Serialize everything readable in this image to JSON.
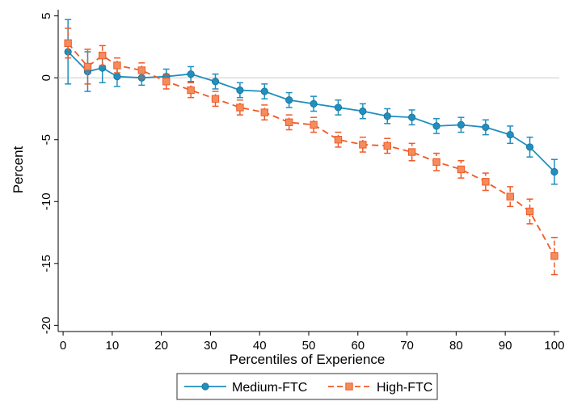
{
  "chart_data": {
    "type": "line",
    "title": "",
    "xlabel": "Percentiles of Experience",
    "ylabel": "Percent",
    "xlim": [
      -1,
      101
    ],
    "ylim": [
      -20.5,
      5.5
    ],
    "xticks": [
      0,
      10,
      20,
      30,
      40,
      50,
      60,
      70,
      80,
      90,
      100
    ],
    "yticks": [
      5,
      0,
      -5,
      -10,
      -15,
      -20
    ],
    "reference_line_y": 0,
    "grid": false,
    "legend_position": "bottom-center",
    "series": [
      {
        "name": "Medium-FTC",
        "color": "#1f8fbf",
        "marker": "circle",
        "line_style": "solid",
        "x": [
          1,
          5,
          8,
          11,
          16,
          21,
          26,
          31,
          36,
          41,
          46,
          51,
          56,
          61,
          66,
          71,
          76,
          81,
          86,
          91,
          95,
          100
        ],
        "y": [
          2.1,
          0.5,
          0.8,
          0.1,
          0.0,
          0.1,
          0.3,
          -0.3,
          -1.0,
          -1.1,
          -1.8,
          -2.1,
          -2.4,
          -2.7,
          -3.1,
          -3.2,
          -3.9,
          -3.8,
          -4.0,
          -4.6,
          -5.6,
          -7.6
        ],
        "ci_low": [
          -0.5,
          -1.1,
          -0.4,
          -0.7,
          -0.6,
          -0.5,
          -0.3,
          -0.9,
          -1.6,
          -1.7,
          -2.4,
          -2.7,
          -3.0,
          -3.3,
          -3.7,
          -3.8,
          -4.5,
          -4.4,
          -4.6,
          -5.3,
          -6.4,
          -8.6
        ],
        "ci_high": [
          4.7,
          2.1,
          2.0,
          0.9,
          0.6,
          0.7,
          0.9,
          0.3,
          -0.4,
          -0.5,
          -1.2,
          -1.5,
          -1.8,
          -2.1,
          -2.5,
          -2.6,
          -3.3,
          -3.2,
          -3.4,
          -3.9,
          -4.8,
          -6.6
        ]
      },
      {
        "name": "High-FTC",
        "color": "#f05a28",
        "marker": "square",
        "line_style": "dashed",
        "x": [
          1,
          5,
          8,
          11,
          16,
          21,
          26,
          31,
          36,
          41,
          46,
          51,
          56,
          61,
          66,
          71,
          76,
          81,
          86,
          91,
          95,
          100
        ],
        "y": [
          2.8,
          0.9,
          1.8,
          1.0,
          0.6,
          -0.3,
          -1.0,
          -1.7,
          -2.4,
          -2.8,
          -3.6,
          -3.8,
          -5.0,
          -5.4,
          -5.5,
          -6.0,
          -6.8,
          -7.4,
          -8.4,
          -9.6,
          -10.8,
          -14.4
        ],
        "ci_low": [
          1.6,
          -0.5,
          1.0,
          0.4,
          0.0,
          -0.9,
          -1.6,
          -2.3,
          -3.0,
          -3.4,
          -4.2,
          -4.4,
          -5.6,
          -6.0,
          -6.1,
          -6.7,
          -7.5,
          -8.1,
          -9.1,
          -10.4,
          -11.8,
          -15.9
        ],
        "ci_high": [
          4.0,
          2.3,
          2.6,
          1.6,
          1.2,
          0.3,
          -0.4,
          -1.1,
          -1.8,
          -2.2,
          -3.0,
          -3.2,
          -4.4,
          -4.8,
          -4.9,
          -5.3,
          -6.1,
          -6.7,
          -7.7,
          -8.8,
          -9.8,
          -12.9
        ]
      }
    ]
  }
}
